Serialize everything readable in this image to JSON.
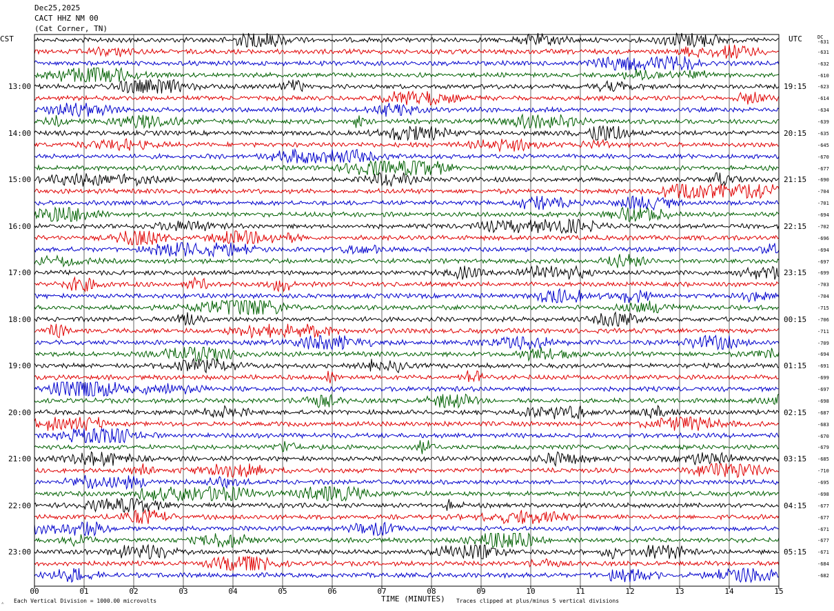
{
  "header": {
    "date": "Dec25,2025",
    "station": "CACT HHZ NM 00",
    "location": "(Cat Corner, TN)"
  },
  "labels": {
    "left_tz": "CST",
    "right_tz": "UTC",
    "dc": "DC",
    "bottom_left_mark": "⚠"
  },
  "chart_data": {
    "type": "line",
    "title": "",
    "xlabel": "TIME (MINUTES)",
    "ylabel": "",
    "xlim": [
      0,
      15
    ],
    "x_ticks": [
      "00",
      "01",
      "02",
      "03",
      "04",
      "05",
      "06",
      "07",
      "08",
      "09",
      "10",
      "11",
      "12",
      "13",
      "14",
      "15"
    ],
    "trace_colors": [
      "#000000",
      "#e00000",
      "#0000cc",
      "#006000"
    ],
    "hours_cst": [
      "13:00",
      "14:00",
      "15:00",
      "16:00",
      "17:00",
      "18:00",
      "19:00",
      "20:00",
      "21:00",
      "22:00",
      "23:00"
    ],
    "hours_utc": [
      "19:15",
      "20:15",
      "21:15",
      "22:15",
      "23:15",
      "00:15",
      "01:15",
      "02:15",
      "03:15",
      "04:15",
      "05:15"
    ],
    "dc_offsets": [
      -631,
      -631,
      -632,
      -610,
      -623,
      -614,
      -634,
      -639,
      -635,
      -645,
      -670,
      -677,
      -690,
      -704,
      -701,
      -694,
      -702,
      -696,
      -694,
      -697,
      -699,
      -703,
      -704,
      -715,
      -706,
      -711,
      -709,
      -694,
      -691,
      -699,
      -697,
      -698,
      -687,
      -683,
      -670,
      -679,
      -685,
      -710,
      -695,
      -698,
      -677,
      -677,
      -671,
      -677,
      -671,
      -684,
      -682
    ],
    "footnote_left": "Each Vertical Division = 1000.00 microvolts",
    "footnote_right": "Traces clipped at plus/minus 5 vertical divisions"
  }
}
